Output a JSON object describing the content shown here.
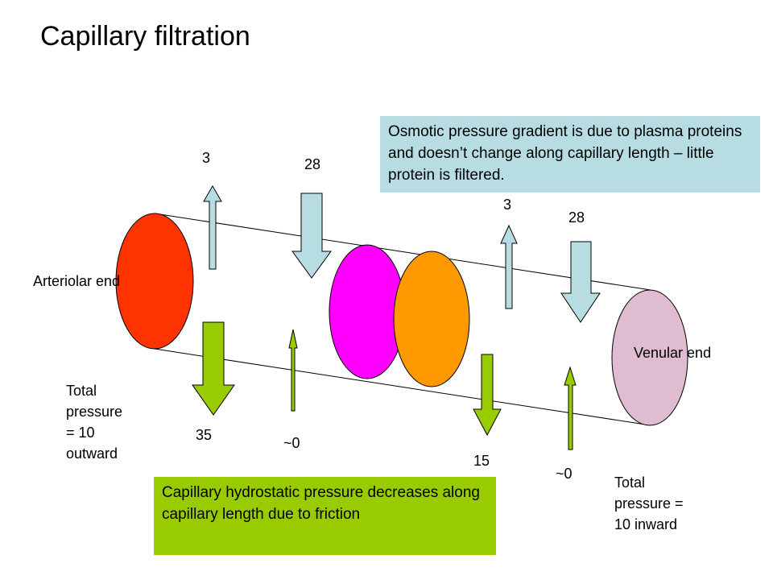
{
  "title": "Capillary filtration",
  "labels": {
    "arteriolar_end": "Arteriolar end",
    "venular_end": "Venular end",
    "total_arteriolar": [
      "Total",
      "pressure",
      "= 10",
      "outward"
    ],
    "total_venular": [
      "Total",
      "pressure =",
      "10 inward"
    ]
  },
  "values": {
    "art_osmotic_out": "3",
    "art_osmotic_in": "28",
    "art_hydrostatic_out": "35",
    "art_hydrostatic_in": "~0",
    "ven_osmotic_out": "3",
    "ven_osmotic_in": "28",
    "ven_hydrostatic_out": "15",
    "ven_hydrostatic_in": "~0"
  },
  "notes": {
    "osmotic": "Osmotic pressure gradient is due to plasma proteins and doesn’t change along capillary length – little protein is filtered.",
    "hydrostatic": "Capillary hydrostatic pressure decreases along capillary length due to friction"
  },
  "colors": {
    "arteriolar_disc": "#ff3300",
    "middle_disc_1": "#ff00ff",
    "middle_disc_2": "#ff9900",
    "venular_disc": "#e0bcd0",
    "osmotic_arrow": "#b7dde3",
    "hydrostatic_arrow": "#99cc00",
    "note_osmotic_bg": "#b7dde3",
    "note_hydrostatic_bg": "#99cc00"
  }
}
